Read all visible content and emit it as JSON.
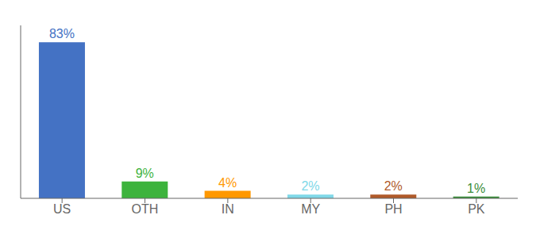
{
  "chart_data": {
    "type": "bar",
    "categories": [
      "US",
      "OTH",
      "IN",
      "MY",
      "PH",
      "PK"
    ],
    "values": [
      83,
      9,
      4,
      2,
      2,
      1
    ],
    "value_labels": [
      "83%",
      "9%",
      "4%",
      "2%",
      "2%",
      "1%"
    ],
    "data_labels": true,
    "colors": [
      "#4472c4",
      "#3db33d",
      "#ff9800",
      "#80d8e8",
      "#b05a2a",
      "#3a8c3a"
    ],
    "ylim": [
      0,
      92
    ],
    "tick_labels": "x",
    "grid": false
  }
}
